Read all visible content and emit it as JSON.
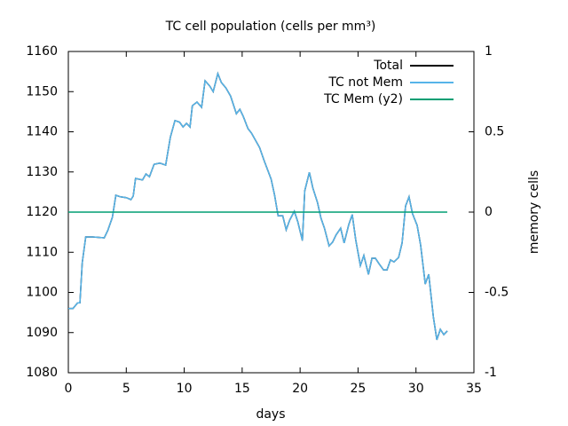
{
  "chart_data": {
    "type": "line",
    "title": "TC cell population (cells per mm³)",
    "xlabel": "days",
    "y2label": "memory cells",
    "x": [
      0,
      0.4,
      0.8,
      1.0,
      1.2,
      1.5,
      2.1,
      3.1,
      3.4,
      3.8,
      4.1,
      4.5,
      5.0,
      5.4,
      5.6,
      5.8,
      6.4,
      6.7,
      7.0,
      7.4,
      7.9,
      8.4,
      8.8,
      9.2,
      9.6,
      9.9,
      10.2,
      10.5,
      10.7,
      11.1,
      11.5,
      11.8,
      12.2,
      12.5,
      12.9,
      13.2,
      13.6,
      14.0,
      14.5,
      14.8,
      15.1,
      15.5,
      15.8,
      16.5,
      16.9,
      17.5,
      17.8,
      18.1,
      18.5,
      18.8,
      19.1,
      19.5,
      19.8,
      20.2,
      20.4,
      20.8,
      21.1,
      21.5,
      21.8,
      22.1,
      22.5,
      22.8,
      23.1,
      23.5,
      23.8,
      24.2,
      24.5,
      24.8,
      25.2,
      25.5,
      25.9,
      26.2,
      26.5,
      26.8,
      27.2,
      27.5,
      27.8,
      28.1,
      28.5,
      28.8,
      29.1,
      29.4,
      29.7,
      30.1,
      30.4,
      30.8,
      31.1,
      31.5,
      31.8,
      32.1,
      32.4,
      32.7
    ],
    "series": [
      {
        "name": "Total",
        "color": "#000000",
        "values": [
          1096,
          1096,
          1097.4,
          1097.4,
          1107.4,
          1113.8,
          1113.8,
          1113.6,
          1115.4,
          1118.7,
          1124.2,
          1123.8,
          1123.6,
          1123.1,
          1124,
          1128.4,
          1128,
          1129.5,
          1128.8,
          1131.9,
          1132.2,
          1131.7,
          1138.6,
          1142.8,
          1142.4,
          1141.2,
          1142.1,
          1141.2,
          1146.5,
          1147.4,
          1146.1,
          1152.7,
          1151.4,
          1150,
          1154.5,
          1152.3,
          1150.9,
          1148.9,
          1144.5,
          1145.6,
          1143.8,
          1140.8,
          1139.7,
          1136.1,
          1132.8,
          1128.2,
          1124.2,
          1119.1,
          1119.1,
          1115.6,
          1118,
          1120.2,
          1117.6,
          1112.9,
          1125.3,
          1129.9,
          1126,
          1122.4,
          1118.5,
          1116,
          1111.6,
          1112.5,
          1114.3,
          1116,
          1112.3,
          1116.9,
          1119.4,
          1113.1,
          1106.7,
          1109.2,
          1104.5,
          1108.5,
          1108.5,
          1107.2,
          1105.6,
          1105.6,
          1108.1,
          1107.6,
          1108.7,
          1112.3,
          1121.5,
          1123.8,
          1119.6,
          1116.7,
          1111.8,
          1102.1,
          1104.5,
          1093.9,
          1088.2,
          1090.8,
          1089.5,
          1090.4
        ]
      },
      {
        "name": "TC not Mem",
        "color": "#56b4e9",
        "values": [
          1096,
          1096,
          1097.4,
          1097.4,
          1107.4,
          1113.8,
          1113.8,
          1113.6,
          1115.4,
          1118.7,
          1124.2,
          1123.8,
          1123.6,
          1123.1,
          1124,
          1128.4,
          1128,
          1129.5,
          1128.8,
          1131.9,
          1132.2,
          1131.7,
          1138.6,
          1142.8,
          1142.4,
          1141.2,
          1142.1,
          1141.2,
          1146.5,
          1147.4,
          1146.1,
          1152.7,
          1151.4,
          1150,
          1154.5,
          1152.3,
          1150.9,
          1148.9,
          1144.5,
          1145.6,
          1143.8,
          1140.8,
          1139.7,
          1136.1,
          1132.8,
          1128.2,
          1124.2,
          1119.1,
          1119.1,
          1115.6,
          1118,
          1120.2,
          1117.6,
          1112.9,
          1125.3,
          1129.9,
          1126,
          1122.4,
          1118.5,
          1116,
          1111.6,
          1112.5,
          1114.3,
          1116,
          1112.3,
          1116.9,
          1119.4,
          1113.1,
          1106.7,
          1109.2,
          1104.5,
          1108.5,
          1108.5,
          1107.2,
          1105.6,
          1105.6,
          1108.1,
          1107.6,
          1108.7,
          1112.3,
          1121.5,
          1123.8,
          1119.6,
          1116.7,
          1111.8,
          1102.1,
          1104.5,
          1093.9,
          1088.2,
          1090.8,
          1089.5,
          1090.4
        ]
      },
      {
        "name": "TC Mem (y2)",
        "color": "#009e73",
        "axis": "y2",
        "values": [
          0,
          0,
          0,
          0,
          0,
          0,
          0,
          0,
          0,
          0,
          0,
          0,
          0,
          0,
          0,
          0,
          0,
          0,
          0,
          0,
          0,
          0,
          0,
          0,
          0,
          0,
          0,
          0,
          0,
          0,
          0,
          0,
          0,
          0,
          0,
          0,
          0,
          0,
          0,
          0,
          0,
          0,
          0,
          0,
          0,
          0,
          0,
          0,
          0,
          0,
          0,
          0,
          0,
          0,
          0,
          0,
          0,
          0,
          0,
          0,
          0,
          0,
          0,
          0,
          0,
          0,
          0,
          0,
          0,
          0,
          0,
          0,
          0,
          0,
          0,
          0,
          0,
          0,
          0,
          0,
          0,
          0,
          0,
          0,
          0,
          0,
          0,
          0,
          0,
          0,
          0,
          0
        ]
      }
    ],
    "xlim": [
      0,
      35
    ],
    "xticks": [
      0,
      5,
      10,
      15,
      20,
      25,
      30,
      35
    ],
    "ylim": [
      1080,
      1160
    ],
    "yticks": [
      1080,
      1090,
      1100,
      1110,
      1120,
      1130,
      1140,
      1150,
      1160
    ],
    "y2lim": [
      -1,
      1
    ],
    "y2ticks": [
      -1,
      -0.5,
      0,
      0.5,
      1
    ],
    "legend": "top-right",
    "grid": false
  }
}
